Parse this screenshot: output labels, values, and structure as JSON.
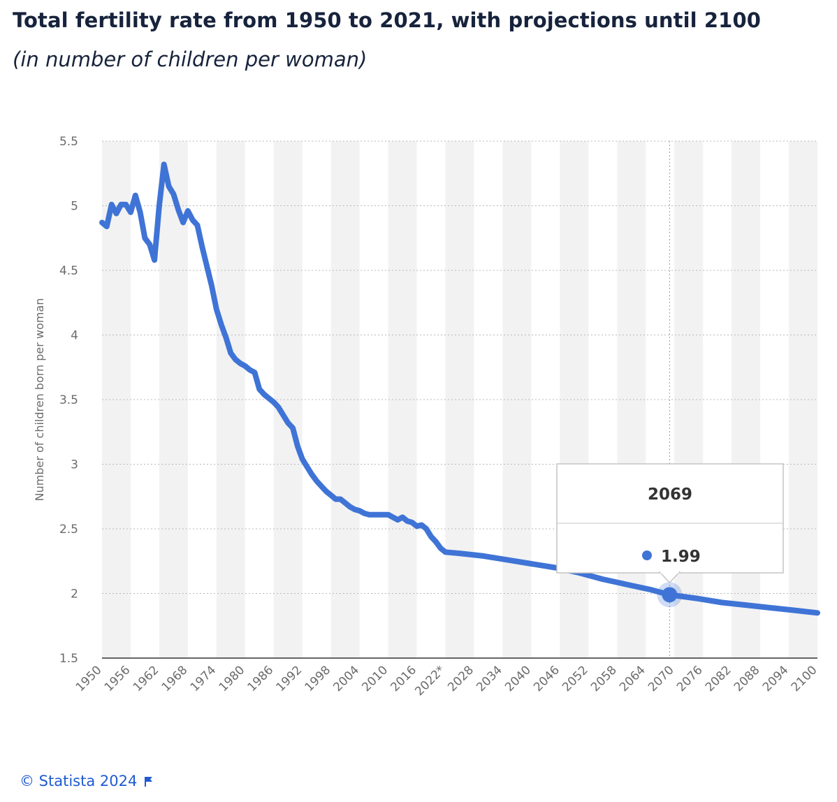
{
  "title": "Total fertility rate from 1950 to 2021, with projections until 2100",
  "subtitle": "(in number of children per woman)",
  "footer": {
    "copyright": "© Statista 2024",
    "flag_icon": "flag-icon"
  },
  "colors": {
    "line": "#3f74d6",
    "grid": "#b8b8b8",
    "band": "#f2f2f2",
    "text": "#17233c",
    "axis_text": "#6b6b6b",
    "footer": "#1f5bd1"
  },
  "chart_data": {
    "type": "line",
    "xlabel": "",
    "ylabel": "Number of children born per woman",
    "xlim": [
      1950,
      2100
    ],
    "ylim": [
      1.5,
      5.5
    ],
    "yticks": [
      "1.5",
      "2",
      "2.5",
      "3",
      "3.5",
      "4",
      "4.5",
      "5",
      "5.5"
    ],
    "xticks": [
      "1950",
      "1956",
      "1962",
      "1968",
      "1974",
      "1980",
      "1986",
      "1992",
      "1998",
      "2004",
      "2010",
      "2016",
      "2022*",
      "2028",
      "2034",
      "2040",
      "2046",
      "2052",
      "2058",
      "2064",
      "2070",
      "2076",
      "2082",
      "2088",
      "2094",
      "2100"
    ],
    "grid": true,
    "legend": "none",
    "x": [
      1950,
      1951,
      1952,
      1953,
      1954,
      1955,
      1956,
      1957,
      1958,
      1959,
      1960,
      1961,
      1962,
      1963,
      1964,
      1965,
      1966,
      1967,
      1968,
      1969,
      1970,
      1971,
      1972,
      1973,
      1974,
      1975,
      1976,
      1977,
      1978,
      1979,
      1980,
      1981,
      1982,
      1983,
      1984,
      1985,
      1986,
      1987,
      1988,
      1989,
      1990,
      1991,
      1992,
      1993,
      1994,
      1995,
      1996,
      1997,
      1998,
      1999,
      2000,
      2001,
      2002,
      2003,
      2004,
      2005,
      2006,
      2007,
      2008,
      2009,
      2010,
      2011,
      2012,
      2013,
      2014,
      2015,
      2016,
      2017,
      2018,
      2019,
      2020,
      2021,
      2022,
      2025,
      2030,
      2035,
      2040,
      2045,
      2050,
      2055,
      2060,
      2065,
      2069,
      2075,
      2080,
      2085,
      2090,
      2095,
      2100
    ],
    "series": [
      {
        "values": [
          4.87,
          4.84,
          5.01,
          4.94,
          5.01,
          5.01,
          4.95,
          5.08,
          4.95,
          4.75,
          4.7,
          4.58,
          5.0,
          5.32,
          5.15,
          5.09,
          4.97,
          4.87,
          4.96,
          4.89,
          4.85,
          4.68,
          4.53,
          4.38,
          4.2,
          4.08,
          3.98,
          3.86,
          3.81,
          3.78,
          3.76,
          3.73,
          3.71,
          3.58,
          3.54,
          3.51,
          3.48,
          3.44,
          3.38,
          3.32,
          3.28,
          3.14,
          3.04,
          2.98,
          2.92,
          2.87,
          2.83,
          2.79,
          2.76,
          2.73,
          2.73,
          2.7,
          2.67,
          2.65,
          2.64,
          2.62,
          2.61,
          2.61,
          2.61,
          2.61,
          2.61,
          2.59,
          2.57,
          2.59,
          2.56,
          2.55,
          2.52,
          2.53,
          2.5,
          2.44,
          2.4,
          2.35,
          2.32,
          2.31,
          2.29,
          2.26,
          2.23,
          2.2,
          2.16,
          2.11,
          2.07,
          2.03,
          1.99,
          1.96,
          1.93,
          1.91,
          1.89,
          1.87,
          1.85
        ]
      }
    ],
    "tooltip": {
      "label": "2069",
      "value": "1.99"
    }
  }
}
